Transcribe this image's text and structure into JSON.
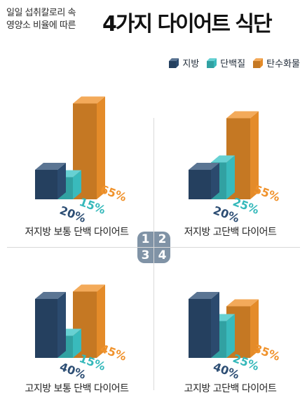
{
  "header": {
    "subtitle_line1": "일일 섭취칼로리 속",
    "subtitle_line2": "영양소 비율에 따른",
    "title": "4가지 다이어트 식단"
  },
  "legend": [
    {
      "label": "지방",
      "color": "#2d4e74"
    },
    {
      "label": "단백질",
      "color": "#3cc4c6"
    },
    {
      "label": "탄수화물",
      "color": "#f0922b"
    }
  ],
  "badge": {
    "numbers": [
      "1",
      "2",
      "3",
      "4"
    ]
  },
  "chart_data": [
    {
      "type": "bar",
      "number": "1",
      "title": "저지방 보통 단백 다이어트",
      "categories": [
        "지방",
        "단백질",
        "탄수화물"
      ],
      "values": [
        20,
        15,
        65
      ],
      "labels": [
        "20%",
        "15%",
        "65%"
      ]
    },
    {
      "type": "bar",
      "number": "2",
      "title": "저지방 고단백 다이어트",
      "categories": [
        "지방",
        "단백질",
        "탄수화물"
      ],
      "values": [
        20,
        25,
        55
      ],
      "labels": [
        "20%",
        "25%",
        "55%"
      ]
    },
    {
      "type": "bar",
      "number": "3",
      "title": "고지방 보통 단백 다이어트",
      "categories": [
        "지방",
        "단백질",
        "탄수화물"
      ],
      "values": [
        40,
        15,
        45
      ],
      "labels": [
        "40%",
        "15%",
        "45%"
      ]
    },
    {
      "type": "bar",
      "number": "4",
      "title": "고지방 고단백 다이어트",
      "categories": [
        "지방",
        "단백질",
        "탄수화물"
      ],
      "values": [
        40,
        25,
        35
      ],
      "labels": [
        "40%",
        "25%",
        "35%"
      ]
    }
  ]
}
